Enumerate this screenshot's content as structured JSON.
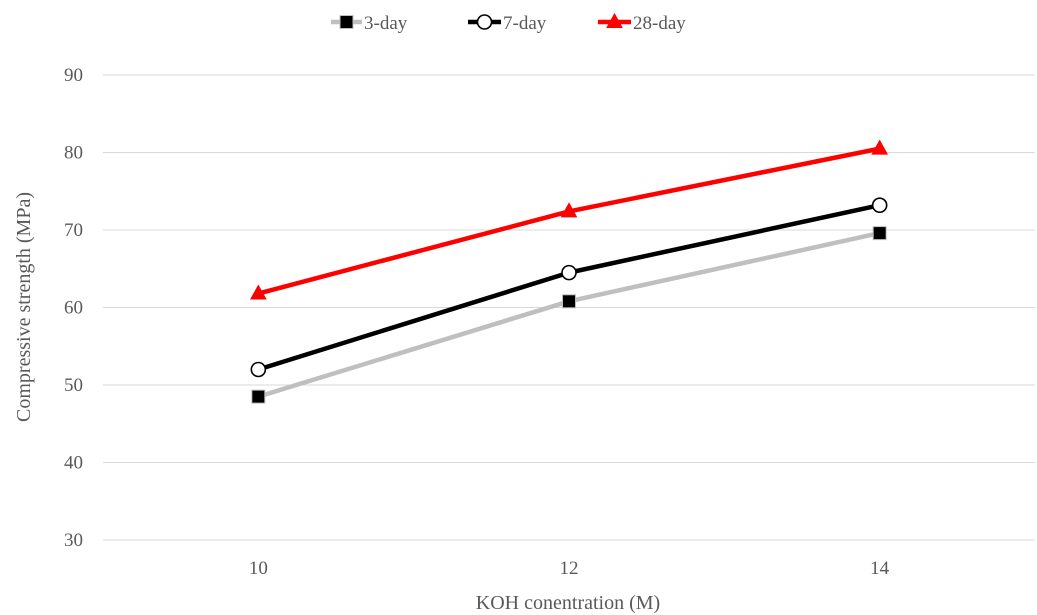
{
  "chart_data": {
    "type": "line",
    "title": "",
    "xlabel": "KOH conentration (M)",
    "ylabel": "Compressive strength (MPa)",
    "x": [
      10,
      12,
      14
    ],
    "x_tick_labels": [
      "10",
      "12",
      "14"
    ],
    "xlim": [
      9,
      15
    ],
    "ylim": [
      30,
      90
    ],
    "y_ticks": [
      30,
      40,
      50,
      60,
      70,
      80,
      90
    ],
    "grid": "horizontal",
    "legend_position": "top",
    "series": [
      {
        "name": "3-day",
        "values": [
          48.5,
          60.8,
          69.6
        ],
        "color": "#bfbfbf",
        "marker": "square",
        "marker_color": "#000000"
      },
      {
        "name": "7-day",
        "values": [
          52.0,
          64.5,
          73.2
        ],
        "color": "#000000",
        "marker": "circle",
        "marker_color": "#ffffff"
      },
      {
        "name": "28-day",
        "values": [
          61.8,
          72.4,
          80.5
        ],
        "color": "#ff0000",
        "marker": "triangle",
        "marker_color": "#ff0000"
      }
    ]
  }
}
